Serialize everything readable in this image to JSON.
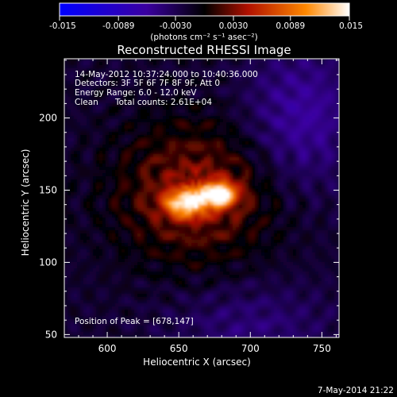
{
  "chart_data": {
    "type": "heatmap",
    "title": "Reconstructed RHESSI Image",
    "xlabel": "Heliocentric X (arcsec)",
    "ylabel": "Heliocentric Y (arcsec)",
    "xlim": [
      570,
      762
    ],
    "ylim": [
      48,
      241
    ],
    "x_ticks": [
      "600",
      "650",
      "700",
      "750"
    ],
    "x_tick_values": [
      600,
      650,
      700,
      750
    ],
    "y_ticks": [
      "50",
      "100",
      "150",
      "200"
    ],
    "y_tick_values": [
      50,
      100,
      150,
      200
    ],
    "colorbar": {
      "min": -0.015,
      "max": 0.015,
      "tick_labels": [
        "-0.015",
        "-0.0089",
        "-0.0030",
        "0.0030",
        "0.0089",
        "0.015"
      ],
      "tick_values": [
        -0.015,
        -0.0089,
        -0.003,
        0.003,
        0.0089,
        0.015
      ],
      "unit_label": "(photons cm⁻² s⁻¹ asec⁻²)",
      "colors": [
        "#0000ff",
        "#3a00a0",
        "#000000",
        "#b01000",
        "#ff8800",
        "#ffffff"
      ]
    },
    "annotations": {
      "time": "14-May-2012 10:37:24.000 to 10:40:36.000",
      "detectors": "Detectors: 3F 5F 6F 7F 8F 9F, Att 0",
      "energy": "Energy Range: 6.0 - 12.0 keV",
      "method": "Clean",
      "counts": "Total counts: 2.61E+04",
      "peak": "Position of Peak = [678,147]"
    },
    "sources": [
      {
        "x": 678,
        "y": 147,
        "peak": 0.015
      },
      {
        "x": 655,
        "y": 141,
        "peak": 0.013
      }
    ],
    "footer_date": "7-May-2014 21:22"
  }
}
